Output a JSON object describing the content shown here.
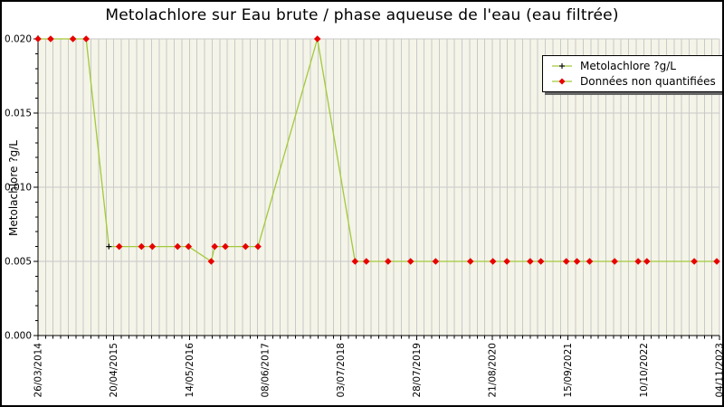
{
  "colors": {
    "line_green": "#a2c93a",
    "marker_red": "#e80000",
    "marker_black": "#000000",
    "grid": "#c9c9c9",
    "plot_bg": "#f4f4e8",
    "axis": "#000000",
    "legend_shadow": "#666666"
  },
  "chart_data": {
    "type": "line",
    "title": "Metolachlore sur Eau brute / phase aqueuse de l'eau (eau filtrée)",
    "xlabel": "",
    "ylabel": "Metolachlore ?g/L",
    "ylim": [
      0,
      0.02
    ],
    "y_major_ticks": [
      0,
      0.005,
      0.01,
      0.015,
      0.02
    ],
    "y_tick_labels": [
      "0.000",
      "0.005",
      "0.010",
      "0.015",
      "0.020"
    ],
    "y_minor_tick_step": 0.001,
    "x_axis": {
      "start_date": "26/03/2014",
      "end_date": "04/11/2023",
      "major_tick_interval_days": 390,
      "minor_tick_interval_days": 39,
      "tick_label_rotation_deg": -90
    },
    "x_tick_labels": [
      "26/03/2014",
      "20/04/2015",
      "14/05/2016",
      "08/06/2017",
      "03/07/2018",
      "28/07/2019",
      "21/08/2020",
      "15/09/2021",
      "10/10/2022",
      "04/11/2023"
    ],
    "grid": {
      "vertical_minor": true,
      "horizontal_major": true
    },
    "legend": {
      "position": "top-right",
      "entries": [
        {
          "label": "Metolachlore ?g/L",
          "marker": "black-plus",
          "line_color": "#a2c93a"
        },
        {
          "label": "Données non quantifiées",
          "marker": "red-diamond",
          "line_color": "#a2c93a"
        }
      ]
    },
    "series": [
      {
        "name": "Metolachlore ?g/L",
        "points": [
          {
            "date": "26/03/2014",
            "value": 0.02,
            "quantified": false
          },
          {
            "date": "30/05/2014",
            "value": 0.02,
            "quantified": false
          },
          {
            "date": "22/09/2014",
            "value": 0.02,
            "quantified": false
          },
          {
            "date": "29/11/2014",
            "value": 0.02,
            "quantified": false
          },
          {
            "date": "26/03/2015",
            "value": 0.006,
            "quantified": true
          },
          {
            "date": "18/05/2015",
            "value": 0.006,
            "quantified": false
          },
          {
            "date": "10/09/2015",
            "value": 0.006,
            "quantified": false
          },
          {
            "date": "05/11/2015",
            "value": 0.006,
            "quantified": false
          },
          {
            "date": "14/03/2016",
            "value": 0.006,
            "quantified": false
          },
          {
            "date": "09/05/2016",
            "value": 0.006,
            "quantified": false
          },
          {
            "date": "03/09/2016",
            "value": 0.005,
            "quantified": false
          },
          {
            "date": "21/09/2016",
            "value": 0.006,
            "quantified": false
          },
          {
            "date": "15/11/2016",
            "value": 0.006,
            "quantified": false
          },
          {
            "date": "27/02/2017",
            "value": 0.006,
            "quantified": false
          },
          {
            "date": "02/05/2017",
            "value": 0.006,
            "quantified": false
          },
          {
            "date": "04/03/2018",
            "value": 0.02,
            "quantified": false
          },
          {
            "date": "14/09/2018",
            "value": 0.005,
            "quantified": false
          },
          {
            "date": "11/11/2018",
            "value": 0.005,
            "quantified": false
          },
          {
            "date": "03/03/2019",
            "value": 0.005,
            "quantified": false
          },
          {
            "date": "27/06/2019",
            "value": 0.005,
            "quantified": false
          },
          {
            "date": "03/11/2019",
            "value": 0.005,
            "quantified": false
          },
          {
            "date": "30/04/2020",
            "value": 0.005,
            "quantified": false
          },
          {
            "date": "24/08/2020",
            "value": 0.005,
            "quantified": false
          },
          {
            "date": "04/11/2020",
            "value": 0.005,
            "quantified": false
          },
          {
            "date": "04/03/2021",
            "value": 0.005,
            "quantified": false
          },
          {
            "date": "28/04/2021",
            "value": 0.005,
            "quantified": false
          },
          {
            "date": "06/09/2021",
            "value": 0.005,
            "quantified": false
          },
          {
            "date": "31/10/2021",
            "value": 0.005,
            "quantified": false
          },
          {
            "date": "04/01/2022",
            "value": 0.005,
            "quantified": false
          },
          {
            "date": "13/05/2022",
            "value": 0.005,
            "quantified": false
          },
          {
            "date": "11/09/2022",
            "value": 0.005,
            "quantified": false
          },
          {
            "date": "26/10/2022",
            "value": 0.005,
            "quantified": false
          },
          {
            "date": "27/06/2023",
            "value": 0.005,
            "quantified": false
          },
          {
            "date": "21/10/2023",
            "value": 0.005,
            "quantified": false
          }
        ]
      }
    ]
  }
}
